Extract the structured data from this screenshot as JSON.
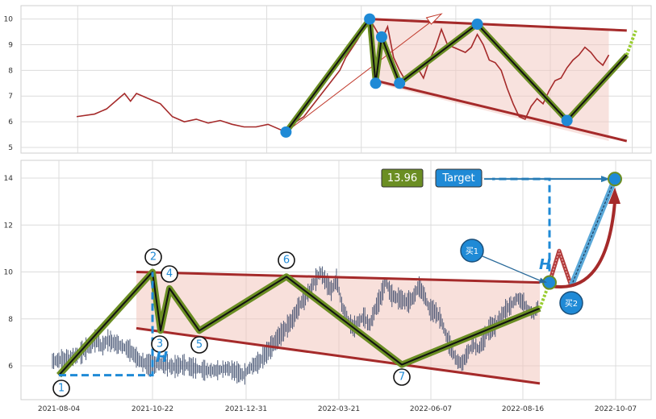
{
  "chart_data": [
    {
      "type": "line",
      "panel": "overview",
      "xlim": [
        0,
        100
      ],
      "ylim": [
        5,
        10.5
      ],
      "yticks": [
        "5",
        "6",
        "7",
        "8",
        "9",
        "10"
      ],
      "series": [
        {
          "values": [
            [
              5,
              6.2
            ],
            [
              8,
              6.3
            ],
            [
              10,
              6.5
            ],
            [
              12,
              6.9
            ],
            [
              13,
              7.1
            ],
            [
              14,
              6.8
            ],
            [
              15,
              7.1
            ],
            [
              17,
              6.9
            ],
            [
              19,
              6.7
            ],
            [
              21,
              6.2
            ],
            [
              23,
              6.0
            ],
            [
              25,
              6.1
            ],
            [
              27,
              5.95
            ],
            [
              29,
              6.05
            ],
            [
              31,
              5.9
            ],
            [
              33,
              5.8
            ],
            [
              35,
              5.8
            ],
            [
              37,
              5.9
            ],
            [
              39,
              5.7
            ],
            [
              40,
              5.6
            ],
            [
              41,
              5.9
            ],
            [
              43,
              6.2
            ],
            [
              44,
              6.5
            ],
            [
              46,
              7.1
            ],
            [
              47,
              7.4
            ],
            [
              49,
              8.0
            ],
            [
              50,
              8.5
            ],
            [
              52,
              9.2
            ],
            [
              53,
              9.6
            ],
            [
              54,
              10.0
            ],
            [
              55,
              9.6
            ],
            [
              56,
              9.2
            ],
            [
              57,
              9.7
            ],
            [
              58,
              8.5
            ],
            [
              59,
              8.0
            ],
            [
              60,
              7.6
            ],
            [
              61,
              7.9
            ],
            [
              62,
              8.1
            ],
            [
              63,
              7.7
            ],
            [
              64,
              8.4
            ],
            [
              65,
              8.9
            ],
            [
              66,
              9.6
            ],
            [
              67,
              9.0
            ],
            [
              68,
              8.9
            ],
            [
              70,
              8.7
            ],
            [
              71,
              8.9
            ],
            [
              72,
              9.4
            ],
            [
              73,
              9.0
            ],
            [
              74,
              8.4
            ],
            [
              75,
              8.3
            ],
            [
              76,
              8.0
            ],
            [
              77,
              7.3
            ],
            [
              78,
              6.7
            ],
            [
              79,
              6.2
            ],
            [
              80,
              6.1
            ],
            [
              81,
              6.6
            ],
            [
              82,
              6.9
            ],
            [
              83,
              6.7
            ],
            [
              84,
              7.2
            ],
            [
              85,
              7.6
            ],
            [
              86,
              7.7
            ],
            [
              87,
              8.1
            ],
            [
              88,
              8.4
            ],
            [
              89,
              8.6
            ],
            [
              90,
              8.9
            ],
            [
              91,
              8.7
            ],
            [
              92,
              8.4
            ],
            [
              93,
              8.2
            ],
            [
              94,
              8.6
            ]
          ]
        }
      ],
      "pivots": [
        [
          40,
          5.6
        ],
        [
          54,
          10.0
        ],
        [
          55,
          7.5
        ],
        [
          56,
          9.3
        ],
        [
          59,
          7.5
        ],
        [
          72,
          9.8
        ],
        [
          87,
          6.05
        ]
      ]
    },
    {
      "type": "line",
      "panel": "pattern",
      "x_tick_labels": [
        "2021-08-04",
        "2021-10-22",
        "2021-12-31",
        "2022-03-21",
        "2022-06-07",
        "2022-08-16",
        "2022-10-07"
      ],
      "yticks": [
        "6",
        "8",
        "10",
        "12",
        "14"
      ],
      "ylim": [
        4.8,
        14.7
      ],
      "pivot_labels": [
        "1",
        "2",
        "3",
        "4",
        "5",
        "6",
        "7"
      ],
      "pivots": [
        [
          "2021-08-04",
          5.6
        ],
        [
          "2021-10-22",
          10.0
        ],
        [
          "2021-10-28",
          7.5
        ],
        [
          "2021-11-01",
          9.3
        ],
        [
          "2021-11-19",
          7.5
        ],
        [
          "2022-02-07",
          9.8
        ],
        [
          "2022-06-07",
          6.05
        ]
      ],
      "resistance_line": [
        [
          "2021-10-22",
          10.0
        ],
        [
          "2022-08-22",
          9.55
        ]
      ],
      "support_line": [
        [
          "2021-10-22",
          7.6
        ],
        [
          "2022-08-16",
          5.25
        ]
      ],
      "breakout_point": [
        "2022-08-22",
        9.55
      ],
      "target_point": [
        "2022-10-07",
        13.96
      ],
      "target_value": "13.96",
      "target_label": "Target",
      "buy_labels": [
        "买1",
        "买2"
      ],
      "h_label": "H"
    }
  ],
  "colors": {
    "price_line": "#a52a2a",
    "trend_red": "#c0392b",
    "zigzag_green": "#6b8e23",
    "zigzag_black": "#111111",
    "wedge_fill": "#f2c6bd",
    "marker_blue": "#1f8ad6",
    "target_box": "#1f8ad6",
    "value_box": "#6b8e23",
    "dashed_blue": "#1f8ad6"
  }
}
